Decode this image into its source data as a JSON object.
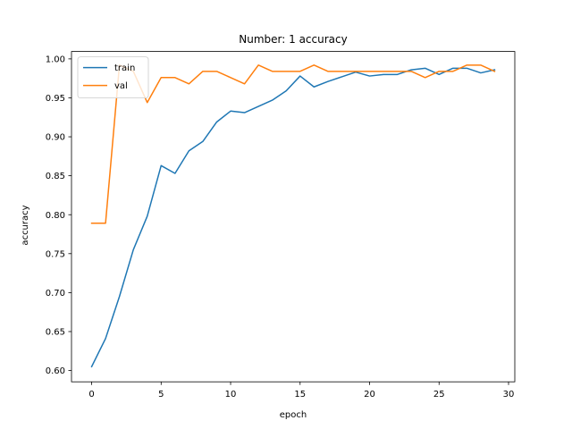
{
  "chart_data": {
    "type": "line",
    "title": "Number: 1 accuracy",
    "xlabel": "epoch",
    "ylabel": "accuracy",
    "xlim": [
      -1.45,
      30.45
    ],
    "ylim": [
      0.5855,
      1.0095
    ],
    "xticks": [
      0,
      5,
      10,
      15,
      20,
      25,
      30
    ],
    "yticks": [
      0.6,
      0.65,
      0.7,
      0.75,
      0.8,
      0.85,
      0.9,
      0.95,
      1.0
    ],
    "ytick_labels": [
      "0.60",
      "0.65",
      "0.70",
      "0.75",
      "0.80",
      "0.85",
      "0.90",
      "0.95",
      "1.00"
    ],
    "grid": false,
    "legend": "top-left",
    "x": [
      0,
      1,
      2,
      3,
      4,
      5,
      6,
      7,
      8,
      9,
      10,
      11,
      12,
      13,
      14,
      15,
      16,
      17,
      18,
      19,
      20,
      21,
      22,
      23,
      24,
      25,
      26,
      27,
      28,
      29
    ],
    "series": [
      {
        "name": "train",
        "color": "#1f77b4",
        "values": [
          0.605,
          0.641,
          0.695,
          0.755,
          0.798,
          0.863,
          0.853,
          0.882,
          0.894,
          0.919,
          0.933,
          0.931,
          0.939,
          0.947,
          0.959,
          0.978,
          0.964,
          0.971,
          0.977,
          0.983,
          0.978,
          0.98,
          0.98,
          0.986,
          0.988,
          0.98,
          0.988,
          0.988,
          0.982,
          0.986
        ]
      },
      {
        "name": "val",
        "color": "#ff7f0e",
        "values": [
          0.789,
          0.789,
          0.992,
          0.984,
          0.944,
          0.976,
          0.976,
          0.968,
          0.984,
          0.984,
          0.976,
          0.968,
          0.992,
          0.984,
          0.984,
          0.984,
          0.992,
          0.984,
          0.984,
          0.984,
          0.984,
          0.984,
          0.984,
          0.984,
          0.976,
          0.984,
          0.984,
          0.992,
          0.992,
          0.984
        ]
      }
    ]
  }
}
